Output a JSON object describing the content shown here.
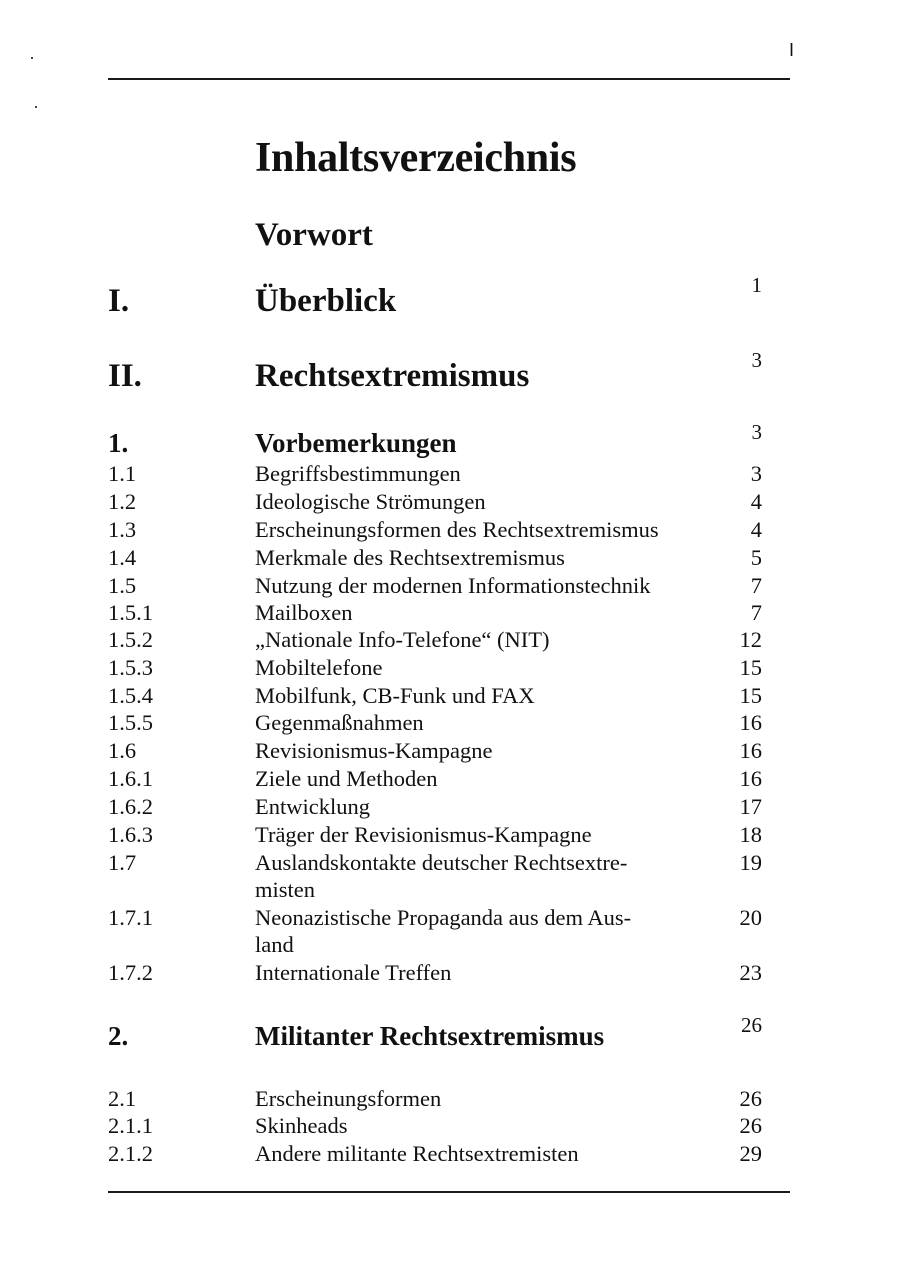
{
  "header": {
    "page_mark": "I"
  },
  "title": "Inhaltsverzeichnis",
  "preface": "Vorwort",
  "entries": [
    {
      "num": "I.",
      "title": "Überblick",
      "page": "1",
      "level": "part"
    },
    {
      "num": "II.",
      "title": "Rechtsextremismus",
      "page": "3",
      "level": "part"
    },
    {
      "num": "1.",
      "title": "Vorbemerkungen",
      "page": "3",
      "level": "chapter"
    },
    {
      "num": "1.1",
      "title": "Begriffsbestimmungen",
      "page": "3",
      "level": "section"
    },
    {
      "num": "1.2",
      "title": "Ideologische Strömungen",
      "page": "4",
      "level": "section"
    },
    {
      "num": "1.3",
      "title": "Erscheinungsformen des Rechtsextremismus",
      "page": "4",
      "level": "section"
    },
    {
      "num": "1.4",
      "title": "Merkmale des Rechtsextremismus",
      "page": "5",
      "level": "section"
    },
    {
      "num": "1.5",
      "title": "Nutzung der modernen Informationstechnik",
      "page": "7",
      "level": "section"
    },
    {
      "num": "1.5.1",
      "title": "Mailboxen",
      "page": "7",
      "level": "section"
    },
    {
      "num": "1.5.2",
      "title": "„Nationale Info-Telefone“ (NIT)",
      "page": "12",
      "level": "section"
    },
    {
      "num": "1.5.3",
      "title": "Mobiltelefone",
      "page": "15",
      "level": "section"
    },
    {
      "num": "1.5.4",
      "title": "Mobilfunk, CB-Funk und FAX",
      "page": "15",
      "level": "section"
    },
    {
      "num": "1.5.5",
      "title": "Gegenmaßnahmen",
      "page": "16",
      "level": "section"
    },
    {
      "num": "1.6",
      "title": "Revisionismus-Kampagne",
      "page": "16",
      "level": "section"
    },
    {
      "num": "1.6.1",
      "title": "Ziele und Methoden",
      "page": "16",
      "level": "section"
    },
    {
      "num": "1.6.2",
      "title": "Entwicklung",
      "page": "17",
      "level": "section"
    },
    {
      "num": "1.6.3",
      "title": "Träger der Revisionismus-Kampagne",
      "page": "18",
      "level": "section"
    },
    {
      "num": "1.7",
      "title": "Auslandskontakte deutscher Rechtsextre-",
      "title_cont": "misten",
      "page": "19",
      "level": "section"
    },
    {
      "num": "1.7.1",
      "title": "Neonazistische Propaganda aus dem Aus-",
      "title_cont": "land",
      "page": "20",
      "level": "section"
    },
    {
      "num": "1.7.2",
      "title": "Internationale Treffen",
      "page": "23",
      "level": "section"
    },
    {
      "num": "2.",
      "title": "Militanter Rechtsextremismus",
      "page": "26",
      "level": "chapter"
    },
    {
      "num": "2.1",
      "title": "Erscheinungsformen",
      "page": "26",
      "level": "section"
    },
    {
      "num": "2.1.1",
      "title": "Skinheads",
      "page": "26",
      "level": "section"
    },
    {
      "num": "2.1.2",
      "title": "Andere militante Rechtsextremisten",
      "page": "29",
      "level": "section"
    }
  ]
}
